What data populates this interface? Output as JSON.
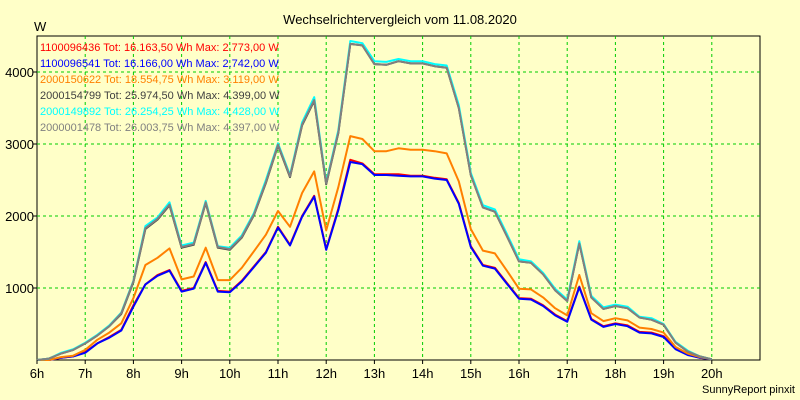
{
  "chart_data": {
    "type": "line",
    "title": "Wechselrichtervergleich vom 11.08.2020",
    "ylabel": "W",
    "footer": "SunnyReport pinxit",
    "ylim": [
      0,
      4500
    ],
    "xlim": [
      6,
      21
    ],
    "grid": true,
    "legend_position": "top-left",
    "yticks": [
      1000,
      2000,
      3000,
      4000
    ],
    "xticks": [
      {
        "value": 6,
        "label": "6h"
      },
      {
        "value": 7,
        "label": "7h"
      },
      {
        "value": 8,
        "label": "8h"
      },
      {
        "value": 9,
        "label": "9h"
      },
      {
        "value": 10,
        "label": "10h"
      },
      {
        "value": 11,
        "label": "11h"
      },
      {
        "value": 12,
        "label": "12h"
      },
      {
        "value": 13,
        "label": "13h"
      },
      {
        "value": 14,
        "label": "14h"
      },
      {
        "value": 15,
        "label": "15h"
      },
      {
        "value": 16,
        "label": "16h"
      },
      {
        "value": 17,
        "label": "17h"
      },
      {
        "value": 18,
        "label": "18h"
      },
      {
        "value": 19,
        "label": "19h"
      },
      {
        "value": 20,
        "label": "20h"
      }
    ],
    "x": [
      6.0,
      6.25,
      6.5,
      6.75,
      7.0,
      7.25,
      7.5,
      7.75,
      8.0,
      8.25,
      8.5,
      8.75,
      9.0,
      9.25,
      9.5,
      9.75,
      10.0,
      10.25,
      10.5,
      10.75,
      11.0,
      11.25,
      11.5,
      11.75,
      12.0,
      12.25,
      12.5,
      12.75,
      13.0,
      13.25,
      13.5,
      13.75,
      14.0,
      14.25,
      14.5,
      14.75,
      15.0,
      15.25,
      15.5,
      15.75,
      16.0,
      16.25,
      16.5,
      16.75,
      17.0,
      17.25,
      17.5,
      17.75,
      18.0,
      18.25,
      18.5,
      18.75,
      19.0,
      19.25,
      19.5,
      19.75,
      20.0
    ],
    "series": [
      {
        "name": "1100096436",
        "legend": "1100096436 Tot: 16.163,50 Wh Max: 2.773,00 W",
        "color": "#ff0000",
        "values": [
          0,
          0,
          30,
          50,
          110,
          230,
          320,
          420,
          760,
          1050,
          1180,
          1250,
          960,
          1000,
          1360,
          960,
          950,
          1100,
          1300,
          1500,
          1850,
          1600,
          2000,
          2280,
          1540,
          2100,
          2780,
          2730,
          2580,
          2580,
          2580,
          2560,
          2560,
          2530,
          2510,
          2180,
          1580,
          1320,
          1280,
          1070,
          860,
          850,
          760,
          630,
          540,
          1020,
          570,
          470,
          510,
          480,
          390,
          380,
          330,
          160,
          80,
          30,
          10
        ]
      },
      {
        "name": "1100096541",
        "legend": "1100096541 Tot: 16.166,00 Wh Max: 2.742,00 W",
        "color": "#0000ff",
        "values": [
          0,
          0,
          30,
          50,
          100,
          230,
          310,
          410,
          740,
          1050,
          1170,
          1240,
          950,
          990,
          1350,
          950,
          940,
          1090,
          1290,
          1490,
          1840,
          1590,
          1990,
          2270,
          1530,
          2080,
          2750,
          2720,
          2570,
          2570,
          2560,
          2550,
          2550,
          2520,
          2500,
          2170,
          1570,
          1310,
          1270,
          1060,
          850,
          840,
          750,
          620,
          530,
          1010,
          560,
          460,
          500,
          470,
          380,
          370,
          320,
          150,
          70,
          30,
          10
        ]
      },
      {
        "name": "2000150622",
        "legend": "2000150622 Tot: 18.554,75 Wh Max: 3.119,00 W",
        "color": "#ff8000",
        "values": [
          0,
          0,
          40,
          60,
          140,
          280,
          380,
          510,
          860,
          1320,
          1420,
          1550,
          1120,
          1160,
          1560,
          1110,
          1110,
          1280,
          1510,
          1740,
          2070,
          1850,
          2320,
          2620,
          1800,
          2400,
          3110,
          3070,
          2900,
          2900,
          2940,
          2920,
          2920,
          2900,
          2870,
          2480,
          1820,
          1520,
          1480,
          1240,
          990,
          980,
          870,
          720,
          620,
          1180,
          650,
          540,
          580,
          550,
          450,
          430,
          380,
          180,
          90,
          40,
          10
        ]
      },
      {
        "name": "2000154799",
        "legend": "2000154799 Tot: 25.974,50 Wh Max: 4.399,00 W",
        "color": "#404040",
        "values": [
          0,
          20,
          90,
          140,
          230,
          340,
          470,
          640,
          1080,
          1820,
          1950,
          2150,
          1560,
          1600,
          2180,
          1560,
          1530,
          1700,
          2010,
          2460,
          2980,
          2540,
          3260,
          3600,
          2440,
          3150,
          4390,
          4370,
          4110,
          4100,
          4150,
          4120,
          4120,
          4080,
          4060,
          3500,
          2570,
          2120,
          2060,
          1720,
          1370,
          1350,
          1190,
          970,
          820,
          1620,
          870,
          710,
          750,
          720,
          590,
          560,
          490,
          240,
          120,
          50,
          10
        ]
      },
      {
        "name": "2000149892",
        "legend": "2000149892 Tot: 26.254,25 Wh Max: 4.428,00 W",
        "color": "#00ffff",
        "values": [
          0,
          20,
          100,
          150,
          240,
          350,
          480,
          660,
          1100,
          1860,
          1980,
          2190,
          1590,
          1630,
          2210,
          1580,
          1560,
          1730,
          2040,
          2500,
          3010,
          2570,
          3300,
          3650,
          2470,
          3190,
          4430,
          4400,
          4150,
          4140,
          4180,
          4150,
          4150,
          4110,
          4090,
          3540,
          2600,
          2150,
          2090,
          1750,
          1400,
          1370,
          1210,
          990,
          840,
          1650,
          890,
          730,
          770,
          740,
          600,
          580,
          500,
          250,
          130,
          50,
          10
        ]
      },
      {
        "name": "2000001478",
        "legend": "2000001478 Tot: 26.003,75 Wh Max: 4.397,00 W",
        "color": "#808080",
        "values": [
          0,
          20,
          90,
          140,
          230,
          340,
          470,
          650,
          1090,
          1830,
          1960,
          2160,
          1570,
          1610,
          2190,
          1570,
          1540,
          1710,
          2020,
          2470,
          2990,
          2550,
          3270,
          3610,
          2450,
          3160,
          4390,
          4370,
          4110,
          4100,
          4150,
          4120,
          4120,
          4080,
          4060,
          3500,
          2570,
          2120,
          2060,
          1720,
          1370,
          1350,
          1190,
          970,
          820,
          1620,
          870,
          710,
          750,
          720,
          590,
          560,
          490,
          240,
          120,
          50,
          10
        ]
      }
    ]
  }
}
